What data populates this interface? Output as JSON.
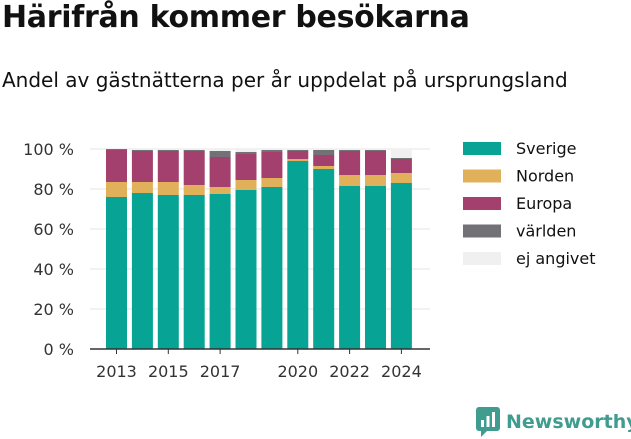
{
  "title": "Härifrån kommer besökarna",
  "subtitle": "Andel av gästnätterna per år uppdelat på ursprungsland",
  "brand": {
    "name": "Newsworthy",
    "icon": "newsworthy-chart-icon",
    "color": "#3f9c8e"
  },
  "chart_data": {
    "type": "bar",
    "stacked": true,
    "title": "Härifrån kommer besökarna",
    "subtitle": "Andel av gästnätterna per år uppdelat på ursprungsland",
    "xlabel": "",
    "ylabel": "",
    "ylim": [
      0,
      100
    ],
    "yticks": [
      "0 %",
      "20 %",
      "40 %",
      "60 %",
      "80 %",
      "100 %"
    ],
    "categories": [
      "2013",
      "2014",
      "2015",
      "2016",
      "2017",
      "2018",
      "2019",
      "2020",
      "2021",
      "2022",
      "2023",
      "2024"
    ],
    "xtick_labels": [
      "2013",
      "",
      "2015",
      "",
      "2017",
      "",
      "",
      "2020",
      "",
      "2022",
      "",
      "2024"
    ],
    "grid": true,
    "legend_position": "right",
    "series": [
      {
        "name": "Sverige",
        "color": "#07a394",
        "values": [
          76,
          78,
          77,
          77,
          77.5,
          79.5,
          81,
          94,
          90,
          81.5,
          81.5,
          83
        ]
      },
      {
        "name": "Norden",
        "color": "#e0b05b",
        "values": [
          7.5,
          5.5,
          6.5,
          5,
          3.5,
          5,
          4.5,
          1,
          1.5,
          5.5,
          5.5,
          5
        ]
      },
      {
        "name": "Europa",
        "color": "#a3406e",
        "values": [
          16,
          15.5,
          15.5,
          17,
          15,
          13,
          13,
          4,
          5.5,
          12,
          12,
          7
        ]
      },
      {
        "name": "världen",
        "color": "#727176",
        "values": [
          0.5,
          0.5,
          0.5,
          0.5,
          3,
          1,
          1,
          0.5,
          2.5,
          0.5,
          0.5,
          0.5
        ]
      },
      {
        "name": "ej angivet",
        "color": "#f0f0f0",
        "values": [
          0,
          0.5,
          0.5,
          0.5,
          1,
          1.5,
          0.5,
          0.5,
          0.5,
          0.5,
          0.5,
          4.5
        ]
      }
    ]
  }
}
